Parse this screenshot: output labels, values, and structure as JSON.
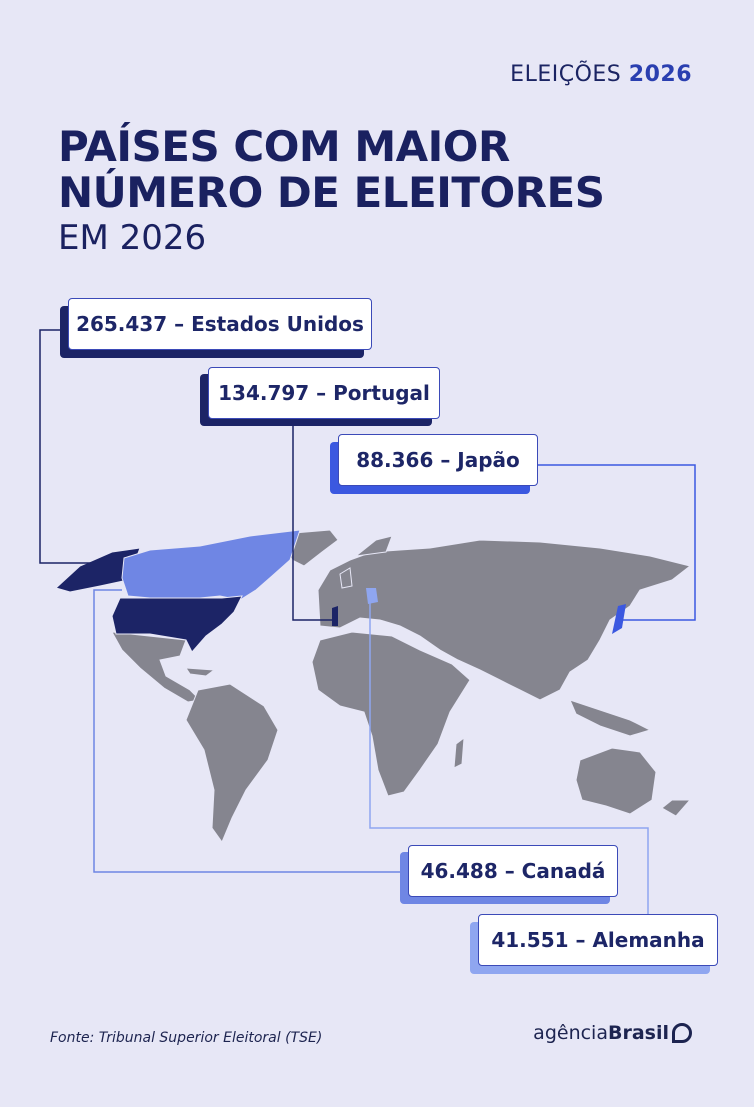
{
  "header": {
    "brand": "ELEIÇÕES",
    "year": "2026"
  },
  "title": {
    "line1": "PAÍSES COM MAIOR",
    "line2": "NÚMERO DE ELEITORES",
    "line3": "EM 2026"
  },
  "callouts": [
    {
      "label": "265.437 – Estados Unidos"
    },
    {
      "label": "134.797 – Portugal"
    },
    {
      "label": "88.366 – Japão"
    },
    {
      "label": "46.488 – Canadá"
    },
    {
      "label": "41.551 –  Alemanha"
    }
  ],
  "footer": {
    "source": "Fonte: Tribunal Superior Eleitoral (TSE)",
    "logo_light": "agência",
    "logo_bold": "Brasil"
  }
}
